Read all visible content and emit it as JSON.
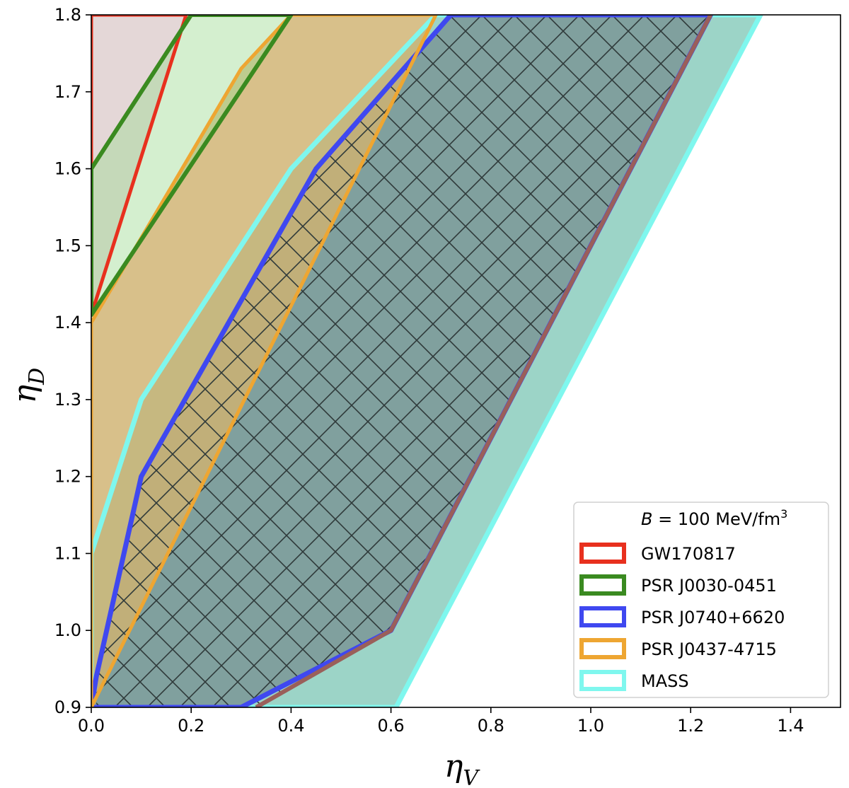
{
  "chart_data": {
    "type": "area",
    "xlabel": {
      "main": "η",
      "sub": "V"
    },
    "ylabel": {
      "main": "η",
      "sub": "D"
    },
    "xlim": [
      0.0,
      1.5
    ],
    "ylim": [
      0.9,
      1.8
    ],
    "xticks": [
      {
        "v": 0.0,
        "label": "0.0"
      },
      {
        "v": 0.2,
        "label": "0.2"
      },
      {
        "v": 0.4,
        "label": "0.4"
      },
      {
        "v": 0.6,
        "label": "0.6"
      },
      {
        "v": 0.8,
        "label": "0.8"
      },
      {
        "v": 1.0,
        "label": "1.0"
      },
      {
        "v": 1.2,
        "label": "1.2"
      },
      {
        "v": 1.4,
        "label": "1.4"
      }
    ],
    "yticks": [
      {
        "v": 0.9,
        "label": "0.9"
      },
      {
        "v": 1.0,
        "label": "1.0"
      },
      {
        "v": 1.1,
        "label": "1.1"
      },
      {
        "v": 1.2,
        "label": "1.2"
      },
      {
        "v": 1.3,
        "label": "1.3"
      },
      {
        "v": 1.4,
        "label": "1.4"
      },
      {
        "v": 1.5,
        "label": "1.5"
      },
      {
        "v": 1.6,
        "label": "1.6"
      },
      {
        "v": 1.7,
        "label": "1.7"
      },
      {
        "v": 1.8,
        "label": "1.8"
      }
    ],
    "grid": false,
    "legend": {
      "placement": "bottom-right",
      "title_prefix": "B",
      "title_rest": " = 100 MeV/fm",
      "title_sup": "3"
    },
    "regions": [
      {
        "key": "mass",
        "name": "MASS",
        "edge": "#7ff7ee",
        "fill": "#5fb9a5",
        "fill_opacity": 0.62,
        "line_width": 7,
        "points": [
          [
            0.0,
            0.9
          ],
          [
            0.0,
            1.1
          ],
          [
            0.1,
            1.3
          ],
          [
            0.4,
            1.6
          ],
          [
            0.69,
            1.8
          ],
          [
            1.34,
            1.8
          ],
          [
            0.61,
            0.9
          ]
        ]
      },
      {
        "key": "j0740",
        "name": "PSR J0740+6620",
        "edge": "#3f48f0",
        "fill": "#6f7f84",
        "fill_opacity": 0.62,
        "line_width": 7,
        "points": [
          [
            0.0,
            0.9
          ],
          [
            0.01,
            0.94
          ],
          [
            0.1,
            1.2
          ],
          [
            0.45,
            1.6
          ],
          [
            0.72,
            1.8
          ],
          [
            1.24,
            1.8
          ],
          [
            0.6,
            1.0
          ],
          [
            0.3,
            0.9
          ]
        ]
      },
      {
        "key": "j0437",
        "name": "PSR J0437-4715",
        "edge": "#eea632",
        "fill": "#cfb270",
        "fill_opacity": 0.82,
        "line_width": 5,
        "points": [
          [
            0.0,
            0.9
          ],
          [
            0.0,
            1.4
          ],
          [
            0.3,
            1.73
          ],
          [
            0.4,
            1.8
          ],
          [
            0.69,
            1.8
          ]
        ]
      },
      {
        "key": "gw170817",
        "name": "GW170817",
        "edge": "#e8301e",
        "fill": "#c9b0b0",
        "fill_opacity": 0.5,
        "line_width": 5,
        "points": [
          [
            0.0,
            1.41
          ],
          [
            0.0,
            1.8
          ],
          [
            0.19,
            1.8
          ]
        ]
      },
      {
        "key": "j0030",
        "name": "PSR J0030-0451",
        "edge": "#3a8a20",
        "fill": "#9fdc94",
        "fill_opacity": 0.45,
        "line_width": 6,
        "points": [
          [
            0.0,
            1.41
          ],
          [
            0.0,
            1.6
          ],
          [
            0.2,
            1.8
          ],
          [
            0.4,
            1.8
          ]
        ]
      }
    ],
    "hatch_region": {
      "key": "hatch",
      "edge": "#9a5f5a",
      "points": [
        [
          0.01,
          0.9
        ],
        [
          0.01,
          0.94
        ],
        [
          0.1,
          1.2
        ],
        [
          0.45,
          1.6
        ],
        [
          0.72,
          1.8
        ],
        [
          1.24,
          1.8
        ],
        [
          0.6,
          1.0
        ],
        [
          0.33,
          0.9
        ]
      ]
    },
    "legend_order": [
      "gw170817",
      "j0030",
      "j0740",
      "j0437",
      "mass"
    ]
  }
}
